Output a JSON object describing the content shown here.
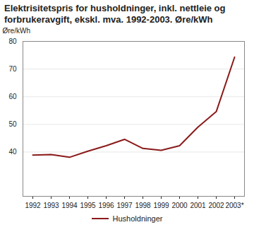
{
  "chart_data": {
    "type": "line",
    "title": "Elektrisitetspris for husholdninger, inkl. nettleie og forbrukeravgift, ekskl. mva. 1992-2003. Øre/kWh",
    "y_label": "Øre/kWh",
    "categories": [
      "1992",
      "1993",
      "1994",
      "1995",
      "1996",
      "1997",
      "1998",
      "1999",
      "2000",
      "2001",
      "2002",
      "2003*"
    ],
    "series": [
      {
        "name": "Husholdninger",
        "color": "#8b1a1a",
        "values": [
          38.9,
          39.1,
          38.1,
          40.3,
          42.3,
          44.6,
          41.3,
          40.6,
          42.3,
          49.0,
          54.6,
          74.3
        ]
      }
    ],
    "ylim": [
      24,
      80
    ],
    "yticks": [
      40,
      50,
      60,
      70,
      80
    ],
    "grid": true,
    "legend": "bottom"
  }
}
